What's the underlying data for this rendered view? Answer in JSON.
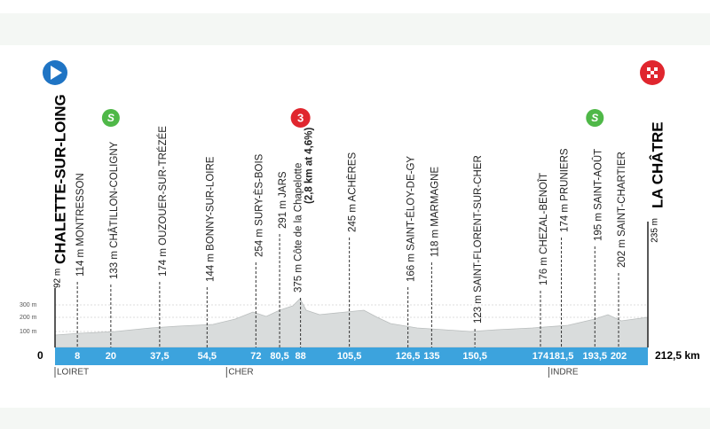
{
  "start": {
    "name": "CHALETTE-SUR-LOING",
    "altitude": "92 m",
    "km": 0
  },
  "finish": {
    "name": "LA CHÂTRE",
    "altitude": "235 m",
    "distance_km": {
      "value": 212.5,
      "label": "212,5 km"
    }
  },
  "altitude_scale": [
    "300 m",
    "200 m",
    "100 m"
  ],
  "waypoints": [
    {
      "km": 8,
      "label": "114 m MONTRESSON"
    },
    {
      "km": 20,
      "label": "133 m CHÂTILLON-COLIGNY",
      "sprint": "S"
    },
    {
      "km": {
        "value": 37.5,
        "label": "37,5"
      },
      "label": "174 m OUZOUER-SUR-TRÉZÉE"
    },
    {
      "km": {
        "value": 54.5,
        "label": "54,5"
      },
      "label": "144 m BONNY-SUR-LOIRE"
    },
    {
      "km": 72,
      "label": "254 m SURY-ÈS-BOIS"
    },
    {
      "km": {
        "value": 80.5,
        "label": "80,5"
      },
      "label": "291 m JARS"
    },
    {
      "km": 88,
      "label": "375 m Côte de la Chapelotte",
      "detail": "(2,8 km at 4,6%)",
      "climb": "3"
    },
    {
      "km": {
        "value": 105.5,
        "label": "105,5"
      },
      "label": "245 m ACHÈRES"
    },
    {
      "km": {
        "value": 126.5,
        "label": "126,5"
      },
      "label": "166 m SAINT-ÉLOY-DE-GY"
    },
    {
      "km": 135,
      "label": "118 m MARMAGNE"
    },
    {
      "km": {
        "value": 150.5,
        "label": "150,5"
      },
      "label": "123 m SAINT-FLORENT-SUR-CHER"
    },
    {
      "km": 174,
      "label": "176 m CHEZAL-BENOÎT"
    },
    {
      "km": {
        "value": 181.5,
        "label": "181,5"
      },
      "label": "174 m PRUNIERS"
    },
    {
      "km": {
        "value": 193.5,
        "label": "193,5"
      },
      "label": "195 m SAINT-AOÛT",
      "sprint": "S"
    },
    {
      "km": 202,
      "label": "202 m SAINT-CHARTIER"
    }
  ],
  "departments": [
    {
      "name": "LOIRET",
      "km": 0
    },
    {
      "name": "CHER",
      "km": 61.5
    },
    {
      "name": "INDRE",
      "km": 177
    }
  ]
}
